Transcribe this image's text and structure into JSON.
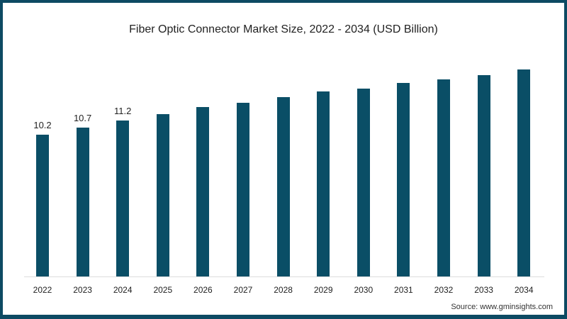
{
  "title": "Fiber Optic Connector Market Size, 2022 - 2034 (USD Billion)",
  "source": "Source: www.gminsights.com",
  "colors": {
    "bar": "#0a4e66",
    "border": "#0d4a63"
  },
  "chart_data": {
    "type": "bar",
    "title": "Fiber Optic Connector Market Size, 2022 - 2034 (USD Billion)",
    "xlabel": "",
    "ylabel": "USD Billion",
    "categories": [
      "2022",
      "2023",
      "2024",
      "2025",
      "2026",
      "2027",
      "2028",
      "2029",
      "2030",
      "2031",
      "2032",
      "2033",
      "2034"
    ],
    "values": [
      10.2,
      10.7,
      11.2,
      11.7,
      12.2,
      12.5,
      12.9,
      13.3,
      13.5,
      13.9,
      14.2,
      14.5,
      14.9
    ],
    "data_labels": [
      "10.2",
      "10.7",
      "11.2",
      "",
      "",
      "",
      "",
      "",
      "",
      "",
      "",
      "",
      ""
    ],
    "grid": false,
    "legend": null,
    "ylim": [
      0,
      16
    ]
  }
}
